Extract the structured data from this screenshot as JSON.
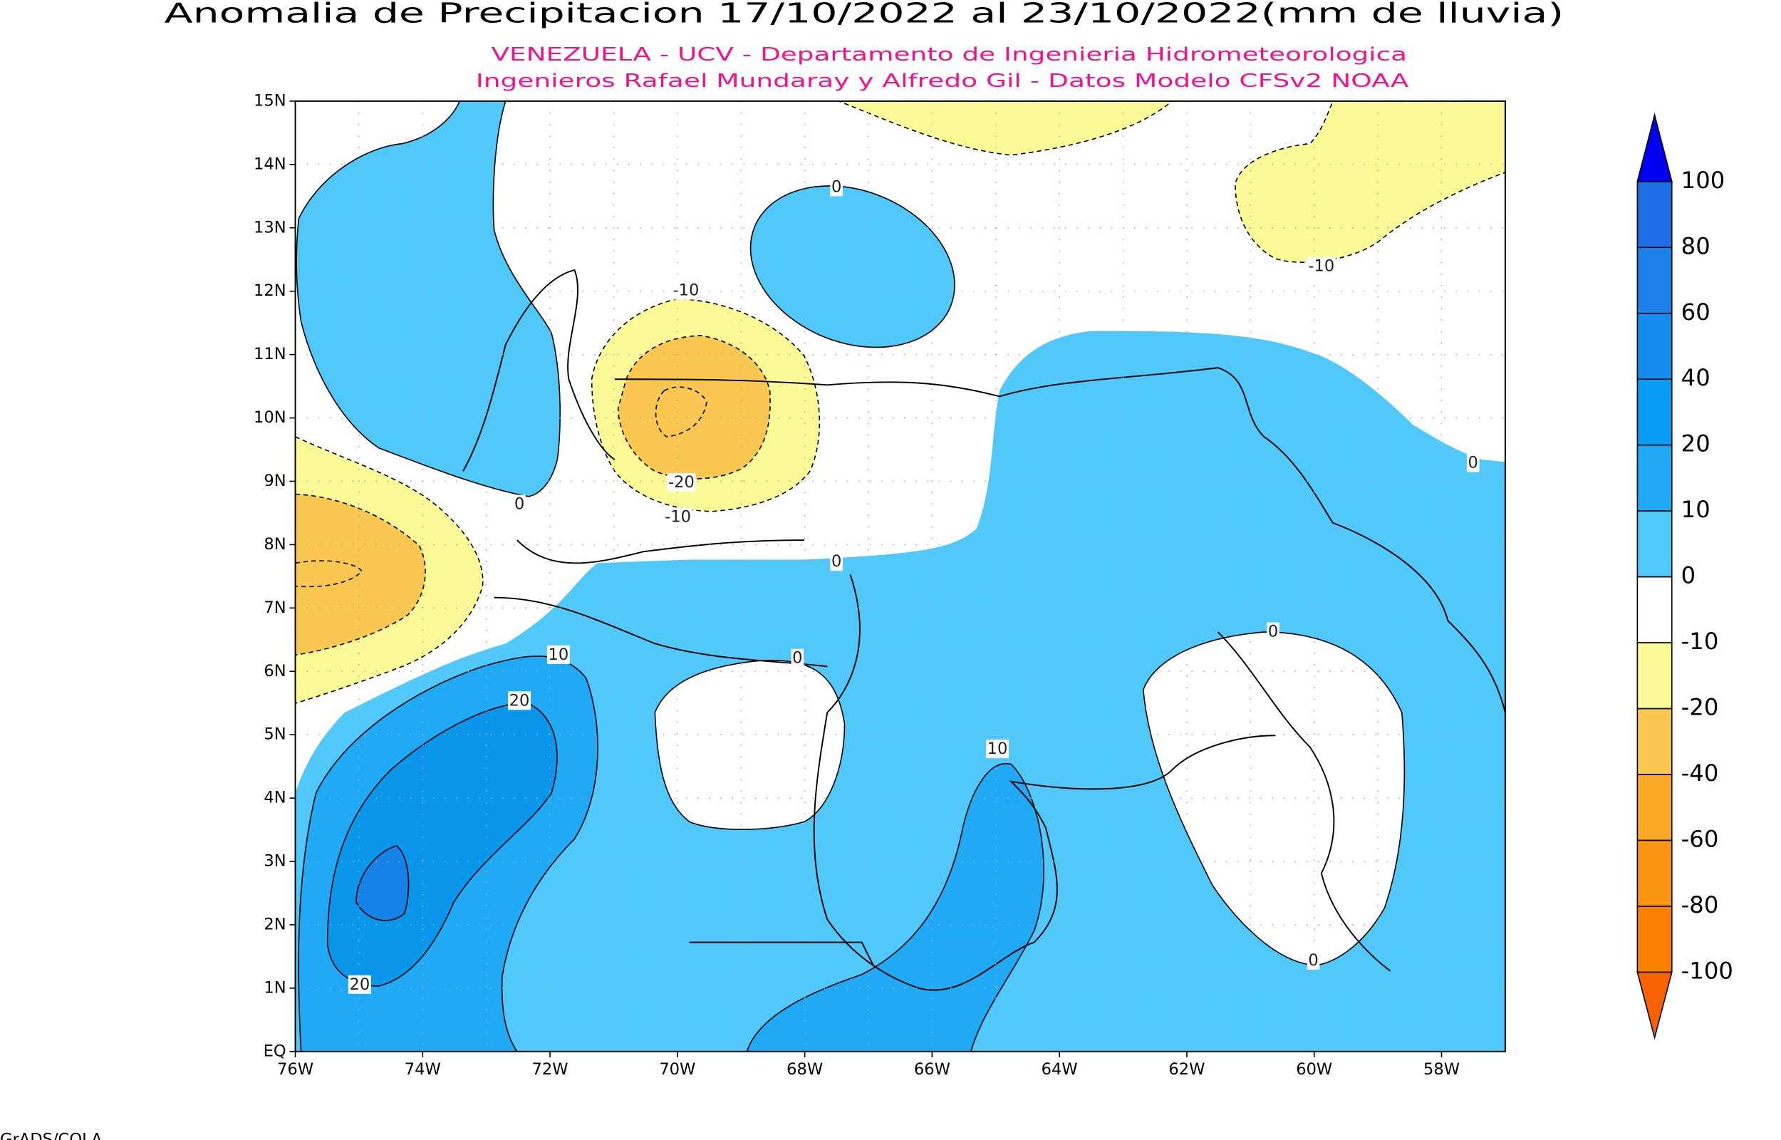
{
  "header": {
    "title": "Anomalia de Precipitacion 17/10/2022 al 23/10/2022(mm de lluvia)",
    "subtitle_lines": [
      "VENEZUELA - UCV - Departamento de Ingenieria Hidrometeorologica",
      "Ingenieros Rafael Mundaray y Alfredo Gil - Datos Modelo CFSv2 NOAA"
    ]
  },
  "map": {
    "lat_labels": [
      "15N",
      "14N",
      "13N",
      "12N",
      "11N",
      "10N",
      "9N",
      "8N",
      "7N",
      "6N",
      "5N",
      "4N",
      "3N",
      "2N",
      "1N",
      "EQ"
    ],
    "lon_labels": [
      "76W",
      "74W",
      "72W",
      "70W",
      "68W",
      "66W",
      "64W",
      "62W",
      "60W",
      "58W"
    ],
    "contour_labels": [
      0,
      -10,
      -10,
      0,
      -20,
      -10,
      0,
      0,
      10,
      20,
      0,
      0,
      10,
      20,
      0
    ]
  },
  "colorbar": {
    "levels": [
      100,
      80,
      60,
      40,
      20,
      10,
      0,
      -10,
      -20,
      -40,
      -60,
      -80,
      -100
    ]
  },
  "footer": "GrADS/COLA"
}
